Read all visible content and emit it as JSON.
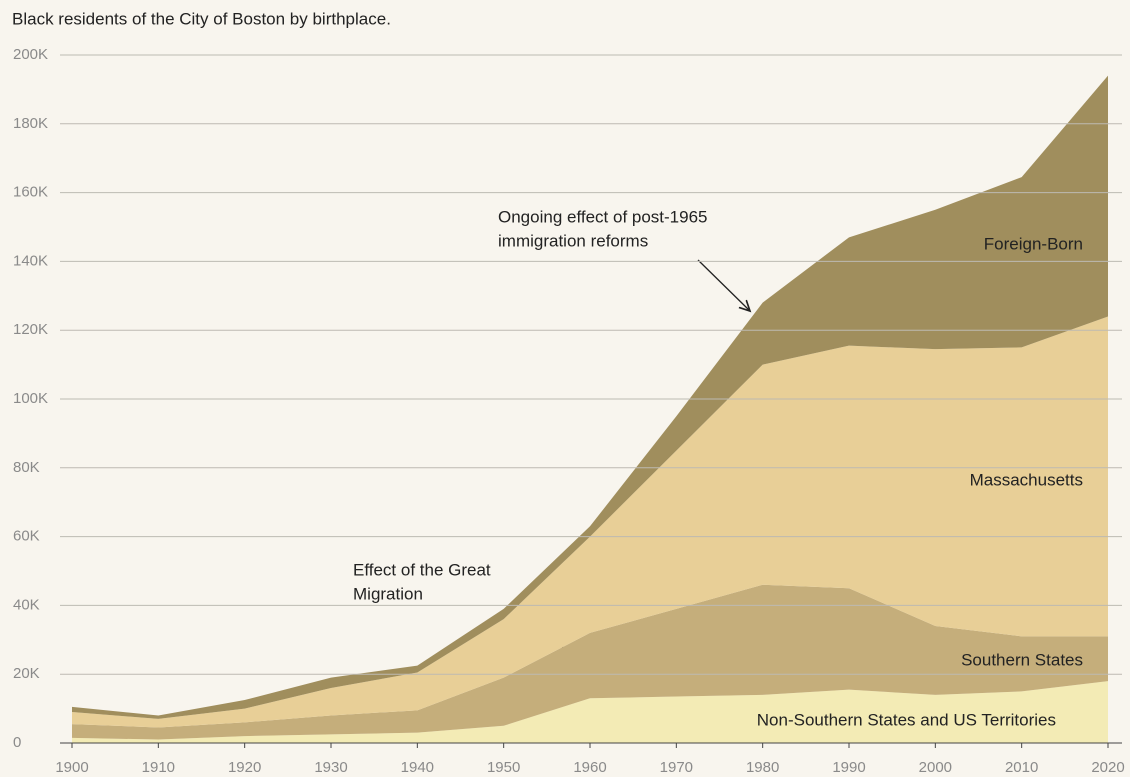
{
  "chart_data": {
    "type": "stacked-area",
    "title": "Black residents of the City of Boston by birthplace.",
    "x": [
      1900,
      1910,
      1920,
      1930,
      1940,
      1950,
      1960,
      1970,
      1980,
      1990,
      2000,
      2010,
      2020
    ],
    "xlim": [
      1900,
      2020
    ],
    "xticks": [
      1900,
      1910,
      1920,
      1930,
      1940,
      1950,
      1960,
      1970,
      1980,
      1990,
      2000,
      2010,
      2020
    ],
    "ylim": [
      0,
      200000
    ],
    "yticks": [
      0,
      {
        "value": 20000,
        "label": "20K"
      },
      {
        "value": 40000,
        "label": "40K"
      },
      {
        "value": 60000,
        "label": "60K"
      },
      {
        "value": 80000,
        "label": "80K"
      },
      {
        "value": 100000,
        "label": "100K"
      },
      {
        "value": 120000,
        "label": "120K"
      },
      {
        "value": 140000,
        "label": "140K"
      },
      {
        "value": 160000,
        "label": "160K"
      },
      {
        "value": 180000,
        "label": "180K"
      },
      {
        "value": 200000,
        "label": "200K"
      }
    ],
    "grid": true,
    "series": [
      {
        "name": "Non-Southern States and US Territories",
        "color": "#f3ebb5",
        "values": [
          1500,
          1000,
          2000,
          2500,
          3000,
          5000,
          13000,
          13500,
          14000,
          15500,
          14000,
          15000,
          18000
        ]
      },
      {
        "name": "Southern States",
        "color": "#c5ae7b",
        "values": [
          4000,
          3500,
          4000,
          5500,
          6500,
          14000,
          19000,
          25500,
          32000,
          29500,
          20000,
          16000,
          13000
        ]
      },
      {
        "name": "Massachusetts",
        "color": "#e8cf97",
        "values": [
          3500,
          2500,
          4000,
          8000,
          11000,
          17000,
          28000,
          46000,
          64000,
          70500,
          80500,
          84000,
          93000
        ]
      },
      {
        "name": "Foreign-Born",
        "color": "#a08e5d",
        "values": [
          1500,
          1000,
          2500,
          3000,
          2000,
          3000,
          3000,
          10000,
          18000,
          31500,
          40500,
          49500,
          70000
        ]
      }
    ],
    "annotations": [
      {
        "text": [
          "Ongoing effect of post-1965",
          "immigration reforms"
        ]
      },
      {
        "text": [
          "Effect of the Great",
          "Migration"
        ]
      }
    ]
  }
}
